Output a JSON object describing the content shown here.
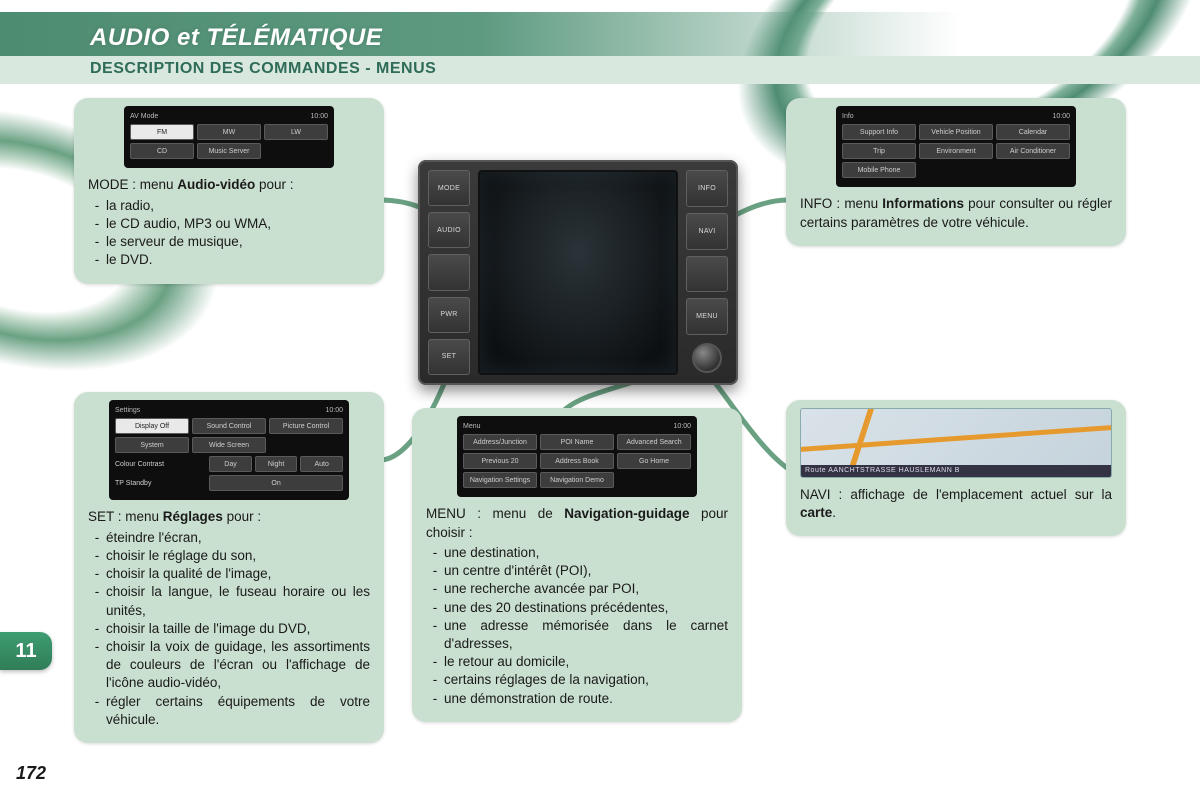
{
  "page": {
    "title": "AUDIO et TÉLÉMATIQUE",
    "subtitle": "DESCRIPTION DES COMMANDES - MENUS",
    "section_number": "11",
    "page_number": "172"
  },
  "colors": {
    "callout_bg": "#c9dfcf",
    "accent": "#4e8c72",
    "accent_light": "#6aa183",
    "sub_bar": "#d9e8de",
    "heading_text": "#2e6b58",
    "body_text": "#1a1a1a"
  },
  "headunit": {
    "left_buttons": [
      "MODE",
      "AUDIO",
      "",
      "PWR",
      "SET"
    ],
    "right_buttons": [
      "INFO",
      "NAVI",
      "",
      "MENU",
      ""
    ]
  },
  "callouts": {
    "mode": {
      "intro_pre": "MODE : menu ",
      "intro_bold": "Audio-vidéo",
      "intro_post": " pour :",
      "items": [
        "la radio,",
        "le CD audio, MP3 ou WMA,",
        "le serveur de musique,",
        "le DVD."
      ],
      "shot": {
        "header_left": "AV Mode",
        "header_right": "10:00",
        "rows": [
          [
            {
              "label": "FM",
              "selected": true
            },
            {
              "label": "MW"
            },
            {
              "label": "LW"
            }
          ],
          [
            {
              "label": "CD"
            },
            {
              "label": "Music Server"
            },
            {
              "label": ""
            }
          ]
        ]
      }
    },
    "set": {
      "intro_pre": "SET : menu ",
      "intro_bold": "Réglages",
      "intro_post": " pour :",
      "items": [
        "éteindre l'écran,",
        "choisir le réglage du son,",
        "choisir la qualité de l'image,",
        "choisir la langue, le fuseau horaire ou les unités,",
        "choisir la taille de l'image du DVD,",
        "choisir la voix de guidage, les assortiments de couleurs de l'écran ou l'affichage de l'icône audio-vidéo,",
        "régler certains équipements de votre véhicule."
      ],
      "shot": {
        "header_left": "Settings",
        "header_right": "10:00",
        "rows": [
          [
            {
              "label": "Display Off",
              "selected": true
            },
            {
              "label": "Sound Control"
            },
            {
              "label": "Picture Control"
            }
          ],
          [
            {
              "label": "System"
            },
            {
              "label": "Wide Screen"
            },
            {
              "label": ""
            }
          ]
        ],
        "extra_rows": [
          {
            "label": "Colour Contrast",
            "opts": [
              "Day",
              "Night",
              "Auto"
            ]
          },
          {
            "label": "TP Standby",
            "opts": [
              "On"
            ]
          }
        ]
      }
    },
    "menu": {
      "intro_pre": "MENU : menu de ",
      "intro_bold": "Navigation-guidage",
      "intro_post": " pour choisir :",
      "items": [
        "une destination,",
        "un centre d'intérêt (POI),",
        "une recherche avancée par POI,",
        "une des 20 destinations précédentes,",
        "une adresse mémorisée dans le carnet d'adresses,",
        "le retour au domicile,",
        "certains réglages de la navigation,",
        "une démonstration de route."
      ],
      "shot": {
        "header_left": "Menu",
        "header_right": "10:00",
        "rows": [
          [
            {
              "label": "Address/Junction"
            },
            {
              "label": "POI Name"
            },
            {
              "label": "Advanced Search"
            }
          ],
          [
            {
              "label": "Previous 20"
            },
            {
              "label": "Address Book"
            },
            {
              "label": "Go Home"
            }
          ],
          [
            {
              "label": "Navigation Settings"
            },
            {
              "label": "Navigation Demo"
            },
            {
              "label": ""
            }
          ]
        ]
      }
    },
    "info": {
      "intro_pre": "INFO : menu ",
      "intro_bold": "Informations",
      "intro_post": " pour consulter ou régler certains paramètres de votre véhicule.",
      "shot": {
        "header_left": "Info",
        "header_right": "10:00",
        "rows": [
          [
            {
              "label": "Support Info"
            },
            {
              "label": "Vehicle Position"
            },
            {
              "label": "Calendar"
            }
          ],
          [
            {
              "label": "Trip"
            },
            {
              "label": "Environment"
            },
            {
              "label": "Air Conditioner"
            }
          ],
          [
            {
              "label": "Mobile Phone"
            },
            {
              "label": ""
            },
            {
              "label": ""
            }
          ]
        ]
      }
    },
    "navi": {
      "intro_pre": "NAVI : affichage de l'emplacement actuel sur la ",
      "intro_bold": "carte",
      "intro_post": ".",
      "map_footer": "Route   AANCHTSTRASSE HAUSLEMANN B"
    }
  }
}
